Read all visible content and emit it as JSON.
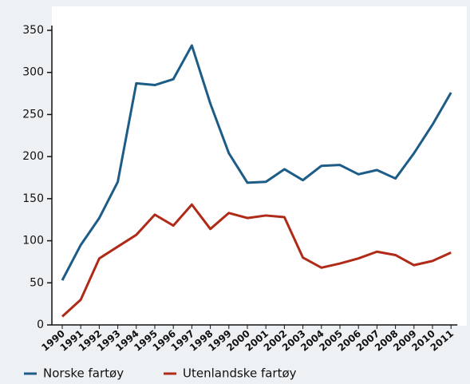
{
  "chart_data": {
    "type": "line",
    "categories": [
      "1990",
      "1991",
      "1992",
      "1993",
      "1994",
      "1995",
      "1996",
      "1997",
      "1998",
      "1999",
      "2000",
      "2001",
      "2002",
      "2003",
      "2004",
      "2005",
      "2006",
      "2007",
      "2008",
      "2009",
      "2010",
      "2011"
    ],
    "series": [
      {
        "name": "Norske fartøy",
        "color": "#1c5c87",
        "values": [
          53,
          95,
          127,
          170,
          287,
          285,
          292,
          332,
          263,
          204,
          169,
          170,
          185,
          172,
          189,
          190,
          179,
          184,
          174,
          204,
          238,
          276
        ]
      },
      {
        "name": "Utenlandske fartøy",
        "color": "#b02a18",
        "values": [
          10,
          30,
          79,
          93,
          107,
          131,
          118,
          143,
          114,
          133,
          127,
          130,
          128,
          80,
          68,
          73,
          79,
          87,
          83,
          71,
          76,
          86
        ]
      }
    ],
    "ylim": [
      0,
      350
    ],
    "yticks": [
      0,
      50,
      100,
      150,
      200,
      250,
      300,
      350
    ]
  }
}
